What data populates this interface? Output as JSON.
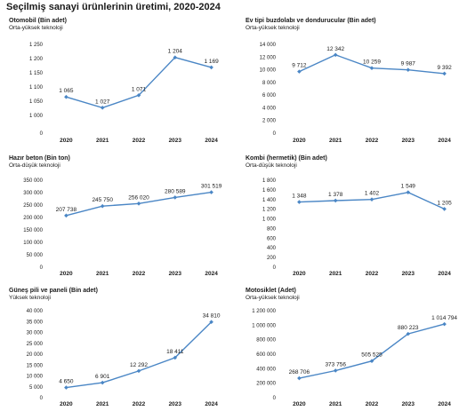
{
  "page": {
    "title": "Seçilmiş sanayi ürünlerinin üretimi, 2020-2024"
  },
  "colors": {
    "line": "#4a86c5",
    "marker": "#4a86c5",
    "grid": "#d9d9d9"
  },
  "panels": [
    {
      "title": "Otomobil (Bin adet)",
      "subtitle": "Orta-yüksek teknoloji"
    },
    {
      "title": "Ev tipi buzdolabı ve dondurucular (Bin adet)",
      "subtitle": "Orta-yüksek teknoloji"
    },
    {
      "title": "Hazır beton (Bin ton)",
      "subtitle": "Orta-düşük teknoloji"
    },
    {
      "title": "Kombi (hermetik) (Bin adet)",
      "subtitle": "Orta-düşük teknoloji"
    },
    {
      "title": "Güneş pili ve paneli (Bin adet)",
      "subtitle": "Yüksek teknoloji"
    },
    {
      "title": "Motosiklet (Adet)",
      "subtitle": "Orta-yüksek teknoloji"
    }
  ],
  "chart_data": [
    {
      "type": "line",
      "title": "Otomobil (Bin adet)",
      "subtitle": "Orta-yüksek teknoloji",
      "x": [
        "2020",
        "2021",
        "2022",
        "2023",
        "2024"
      ],
      "values": [
        1065,
        1027,
        1071,
        1204,
        1169
      ],
      "data_labels": [
        "1 065",
        "1 027",
        "1 071",
        "1 204",
        "1 169"
      ],
      "ylim": [
        0,
        1250
      ],
      "yticks": [
        0,
        250,
        500,
        750,
        1000,
        1050,
        1100,
        1150,
        1200,
        1250
      ],
      "ytick_labels": [
        "0",
        "",
        "",
        "",
        "1 000",
        "1 050",
        "1 100",
        "1 150",
        "1 200",
        "1 250"
      ],
      "grid": false
    },
    {
      "type": "line",
      "title": "Ev tipi buzdolabı ve dondurucular (Bin adet)",
      "subtitle": "Orta-yüksek teknoloji",
      "x": [
        "2020",
        "2021",
        "2022",
        "2023",
        "2024"
      ],
      "values": [
        9712,
        12342,
        10259,
        9987,
        9392
      ],
      "data_labels": [
        "9 712",
        "12 342",
        "10 259",
        "9 987",
        "9 392"
      ],
      "ylim": [
        0,
        14000
      ],
      "yticks": [
        0,
        2000,
        4000,
        6000,
        8000,
        10000,
        12000,
        14000
      ],
      "ytick_labels": [
        "0",
        "2 000",
        "4 000",
        "6 000",
        "8 000",
        "10 000",
        "12 000",
        "14 000"
      ],
      "grid": false
    },
    {
      "type": "line",
      "title": "Hazır beton (Bin ton)",
      "subtitle": "Orta-düşük teknoloji",
      "x": [
        "2020",
        "2021",
        "2022",
        "2023",
        "2024"
      ],
      "values": [
        207738,
        245750,
        256020,
        280589,
        301519
      ],
      "data_labels": [
        "207 738",
        "245 750",
        "256 020",
        "280 589",
        "301 519"
      ],
      "ylim": [
        0,
        350000
      ],
      "yticks": [
        0,
        50000,
        100000,
        150000,
        200000,
        250000,
        300000,
        350000
      ],
      "ytick_labels": [
        "0",
        "50 000",
        "100 000",
        "150 000",
        "200 000",
        "250 000",
        "300 000",
        "350 000"
      ],
      "grid": false
    },
    {
      "type": "line",
      "title": "Kombi (hermetik) (Bin adet)",
      "subtitle": "Orta-düşük teknoloji",
      "x": [
        "2020",
        "2021",
        "2022",
        "2023",
        "2024"
      ],
      "values": [
        1348,
        1378,
        1402,
        1549,
        1205
      ],
      "data_labels": [
        "1 348",
        "1 378",
        "1 402",
        "1 549",
        "1 205"
      ],
      "ylim": [
        0,
        1800
      ],
      "yticks": [
        0,
        200,
        400,
        600,
        800,
        1000,
        1200,
        1400,
        1600,
        1800
      ],
      "ytick_labels": [
        "0",
        "200",
        "400",
        "600",
        "800",
        "1 000",
        "1 200",
        "1 400",
        "1 600",
        "1 800"
      ],
      "grid": false
    },
    {
      "type": "line",
      "title": "Güneş pili ve paneli (Bin adet)",
      "subtitle": "Yüksek teknoloji",
      "x": [
        "2020",
        "2021",
        "2022",
        "2023",
        "2024"
      ],
      "values": [
        4650,
        6901,
        12292,
        18411,
        34810
      ],
      "data_labels": [
        "4 650",
        "6 901",
        "12 292",
        "18 411",
        "34 810"
      ],
      "ylim": [
        0,
        40000
      ],
      "yticks": [
        0,
        5000,
        10000,
        15000,
        20000,
        25000,
        30000,
        35000,
        40000
      ],
      "ytick_labels": [
        "0",
        "5 000",
        "10 000",
        "15 000",
        "20 000",
        "25 000",
        "30 000",
        "35 000",
        "40 000"
      ],
      "grid": false
    },
    {
      "type": "line",
      "title": "Motosiklet (Adet)",
      "subtitle": "Orta-yüksek teknoloji",
      "x": [
        "2020",
        "2021",
        "2022",
        "2023",
        "2024"
      ],
      "values": [
        268706,
        373756,
        505525,
        880223,
        1014794
      ],
      "data_labels": [
        "268 706",
        "373 756",
        "505 525",
        "880 223",
        "1 014 794"
      ],
      "ylim": [
        0,
        1200000
      ],
      "yticks": [
        0,
        200000,
        400000,
        600000,
        800000,
        1000000,
        1200000
      ],
      "ytick_labels": [
        "0",
        "200 000",
        "400 000",
        "600 000",
        "800 000",
        "1 000 000",
        "1 200 000"
      ],
      "grid": false
    }
  ]
}
